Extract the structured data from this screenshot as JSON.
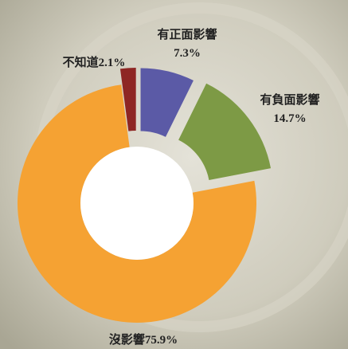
{
  "chart_data": {
    "type": "pie",
    "categories": [
      "有正面影響",
      "有負面影響",
      "沒影響",
      "不知道"
    ],
    "values": [
      7.3,
      14.7,
      75.9,
      2.1
    ],
    "value_labels": [
      "7.3%",
      "14.7%",
      "75.9%",
      "2.1%"
    ],
    "colors": [
      "#5b5aa6",
      "#7d9a45",
      "#f5a233",
      "#8e2624"
    ]
  }
}
